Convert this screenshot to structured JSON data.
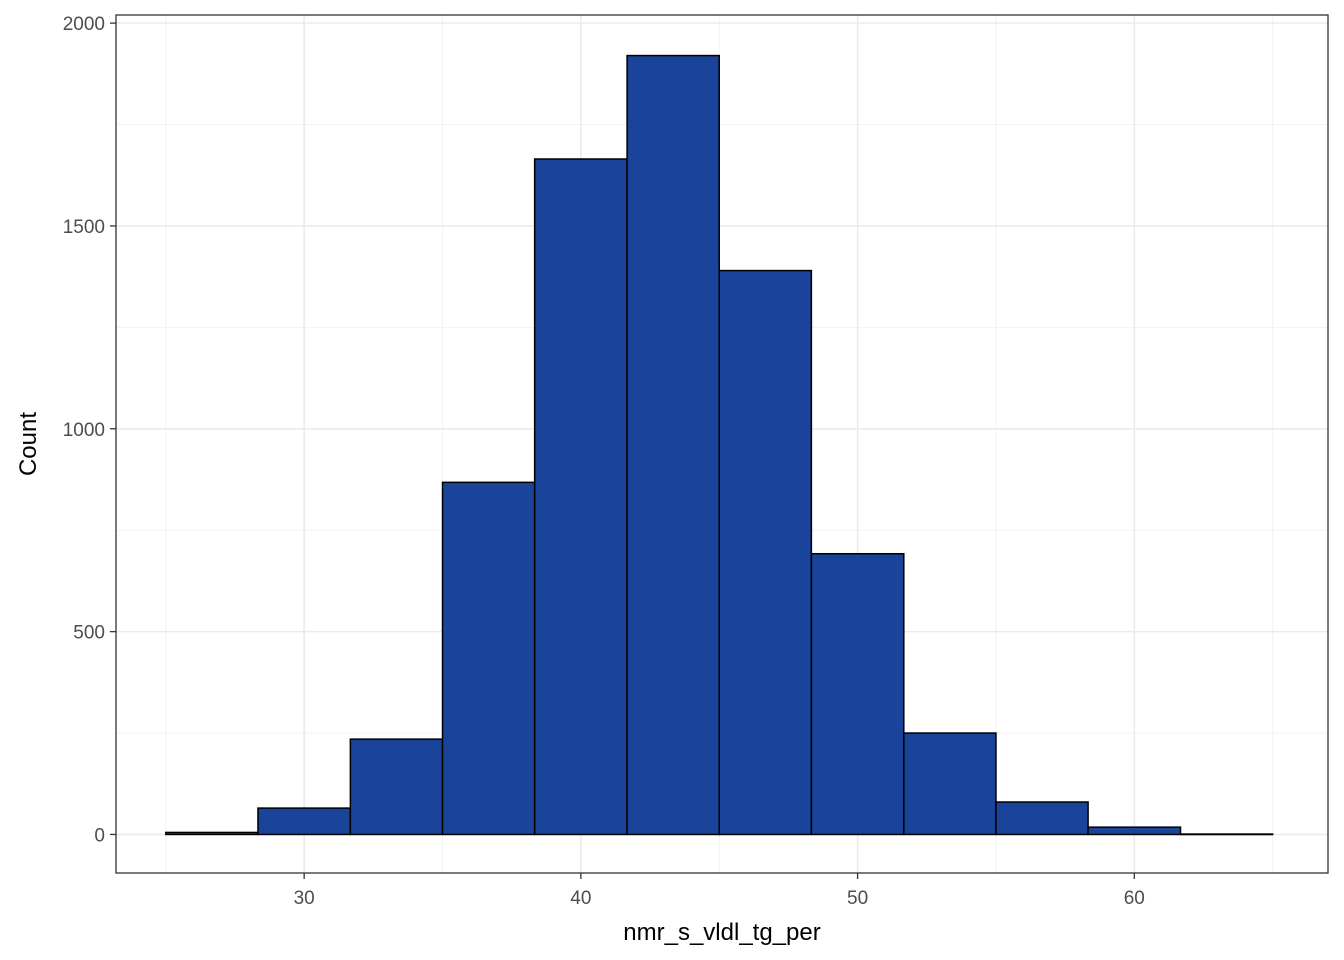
{
  "chart_data": {
    "type": "bar",
    "subtype": "histogram",
    "title": "",
    "xlabel": "nmr_s_vldl_tg_per",
    "ylabel": "Count",
    "xlim": [
      23.2,
      67.0
    ],
    "ylim": [
      -95,
      2020
    ],
    "x_ticks": [
      30,
      40,
      50,
      60
    ],
    "x_minor_ticks": [
      25,
      35,
      45,
      55,
      65
    ],
    "y_ticks": [
      0,
      500,
      1000,
      1500,
      2000
    ],
    "y_minor_ticks": [
      250,
      750,
      1250,
      1750
    ],
    "grid": true,
    "bar_fill": "#1A449A",
    "bar_outline": "#000000",
    "bins": [
      {
        "x_start": 25.0,
        "x_end": 28.33,
        "count": 5
      },
      {
        "x_start": 28.33,
        "x_end": 31.67,
        "count": 65
      },
      {
        "x_start": 31.67,
        "x_end": 35.0,
        "count": 235
      },
      {
        "x_start": 35.0,
        "x_end": 38.33,
        "count": 868
      },
      {
        "x_start": 38.33,
        "x_end": 41.67,
        "count": 1665
      },
      {
        "x_start": 41.67,
        "x_end": 45.0,
        "count": 1920
      },
      {
        "x_start": 45.0,
        "x_end": 48.33,
        "count": 1390
      },
      {
        "x_start": 48.33,
        "x_end": 51.67,
        "count": 692
      },
      {
        "x_start": 51.67,
        "x_end": 55.0,
        "count": 250
      },
      {
        "x_start": 55.0,
        "x_end": 58.33,
        "count": 80
      },
      {
        "x_start": 58.33,
        "x_end": 61.67,
        "count": 18
      },
      {
        "x_start": 61.67,
        "x_end": 65.0,
        "count": 1
      }
    ]
  }
}
